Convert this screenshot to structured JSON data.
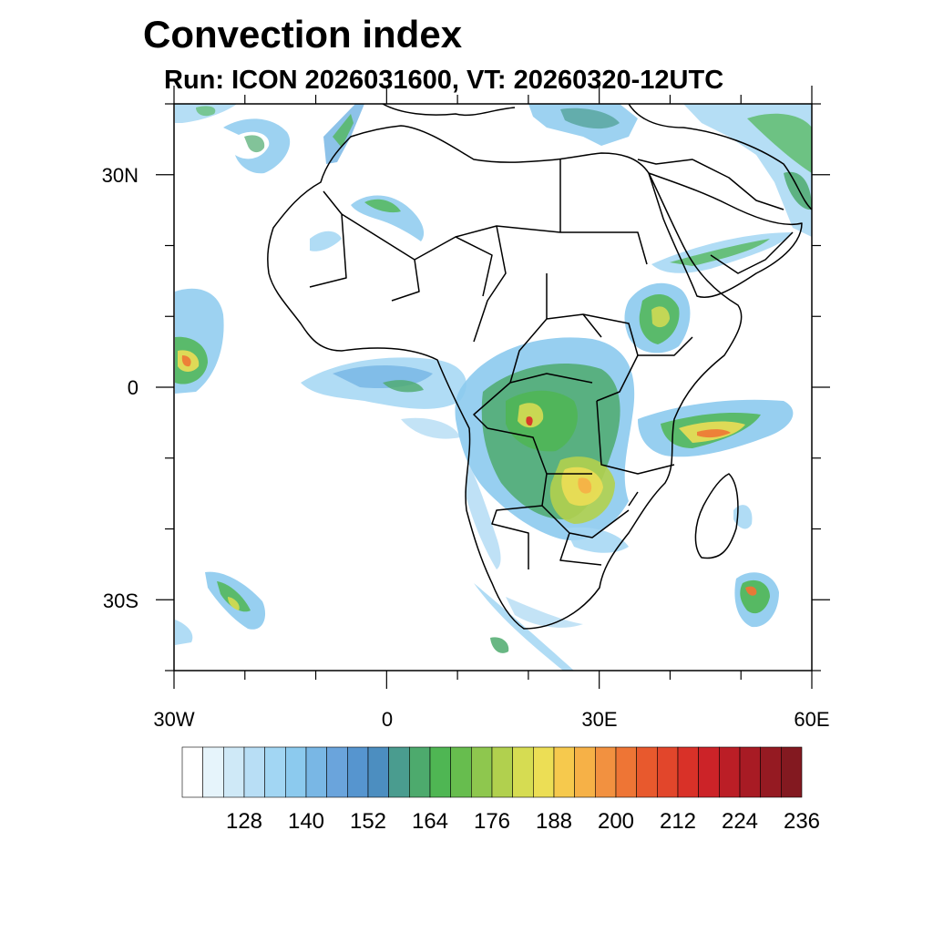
{
  "title": "Convection index",
  "subtitle": "Run: ICON 2026031600,  VT: 20260320-12UTC",
  "map": {
    "projection": "cylindrical equidistant",
    "lon_range": [
      -30,
      60
    ],
    "lat_range": [
      -40,
      40
    ],
    "lat_tick_labels": [
      "30N",
      "0",
      "30S"
    ],
    "lon_tick_labels": [
      "30W",
      "0",
      "30E",
      "60E"
    ],
    "field": "Convection index"
  },
  "colorbar": {
    "levels": [
      "128",
      "140",
      "152",
      "164",
      "176",
      "188",
      "200",
      "212",
      "224",
      "236"
    ],
    "colors": [
      "#ffffff",
      "#e6f4fb",
      "#cfe9f7",
      "#b8def5",
      "#a2d6f3",
      "#8ccaee",
      "#79b7e5",
      "#6aa4dc",
      "#5695cf",
      "#4c8ec0",
      "#4a9c8f",
      "#4daa6d",
      "#4fb653",
      "#67bd4e",
      "#8ec74e",
      "#b1d04e",
      "#d6dc52",
      "#ecde55",
      "#f6c94d",
      "#f6b147",
      "#f29140",
      "#ee7535",
      "#e8592d",
      "#e2462b",
      "#d93128",
      "#cc2328",
      "#bb1e26",
      "#a81b24",
      "#951a22",
      "#831920"
    ]
  }
}
